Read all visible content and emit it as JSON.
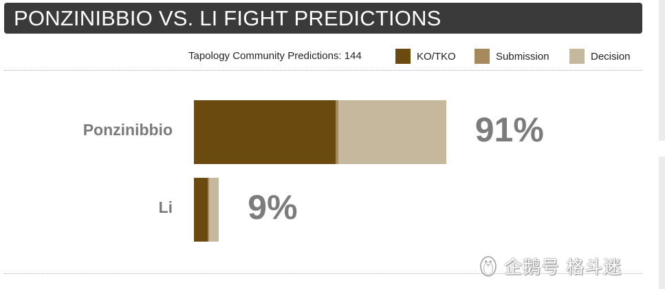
{
  "header": {
    "title": "PONZINIBBIO VS. LI FIGHT PREDICTIONS"
  },
  "legend": {
    "community_label": "Tapology Community Predictions: 144",
    "items": [
      {
        "label": "KO/TKO",
        "color": "#6b4a10"
      },
      {
        "label": "Submission",
        "color": "#a68a5e"
      },
      {
        "label": "Decision",
        "color": "#c6b89c"
      }
    ]
  },
  "chart_data": {
    "type": "bar",
    "orientation": "horizontal",
    "stacked": true,
    "total_predictions": 144,
    "categories": [
      "Ponzinibbio",
      "Li"
    ],
    "series": [
      {
        "name": "KO/TKO",
        "values": [
          51,
          5
        ]
      },
      {
        "name": "Submission",
        "values": [
          1,
          0.5
        ]
      },
      {
        "name": "Decision",
        "values": [
          39,
          3.5
        ]
      }
    ],
    "totals_percent": [
      91,
      9
    ],
    "total_labels": [
      "91%",
      "9%"
    ],
    "xlim": [
      0,
      100
    ],
    "legend_position": "top-right",
    "grid": false
  },
  "watermark": {
    "text": "企鹅号 格斗迷",
    "icon": "penguin-icon"
  }
}
